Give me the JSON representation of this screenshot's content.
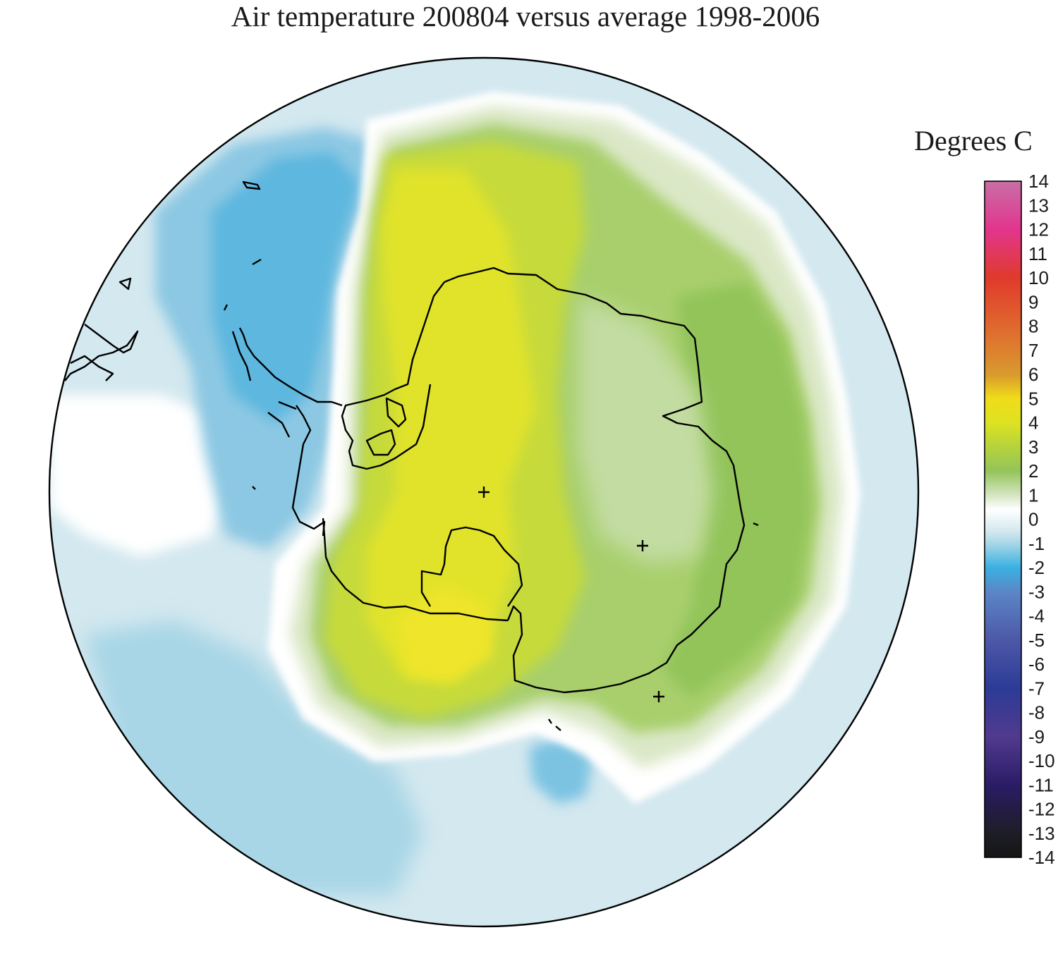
{
  "title": "Air temperature 200804 versus average 1998-2006",
  "colorbar": {
    "units_label": "Degrees C",
    "min": -14,
    "max": 14,
    "ticks": [
      "14",
      "13",
      "12",
      "11",
      "10",
      "9",
      "8",
      "7",
      "6",
      "5",
      "4",
      "3",
      "2",
      "1",
      "0",
      "-1",
      "-2",
      "-3",
      "-4",
      "-5",
      "-6",
      "-7",
      "-8",
      "-9",
      "-10",
      "-11",
      "-12",
      "-13",
      "-14"
    ],
    "colors": [
      {
        "v": 14,
        "c": "#c86fa6"
      },
      {
        "v": 12,
        "c": "#e2358d"
      },
      {
        "v": 10,
        "c": "#e03a2c"
      },
      {
        "v": 8,
        "c": "#e0672f"
      },
      {
        "v": 6,
        "c": "#d99a2e"
      },
      {
        "v": 5,
        "c": "#f0dc1a"
      },
      {
        "v": 4,
        "c": "#dde322"
      },
      {
        "v": 3,
        "c": "#b6d33c"
      },
      {
        "v": 2,
        "c": "#94c45a"
      },
      {
        "v": 1,
        "c": "#d5e5c1"
      },
      {
        "v": 0.4,
        "c": "#ffffff"
      },
      {
        "v": -0.5,
        "c": "#d3e8ef"
      },
      {
        "v": -1,
        "c": "#a8d6e6"
      },
      {
        "v": -2,
        "c": "#3ab1e2"
      },
      {
        "v": -3,
        "c": "#5b86c7"
      },
      {
        "v": -5,
        "c": "#4d58a8"
      },
      {
        "v": -7,
        "c": "#2c3b96"
      },
      {
        "v": -9,
        "c": "#513a8e"
      },
      {
        "v": -11,
        "c": "#2b1c66"
      },
      {
        "v": -13,
        "c": "#1d1d26"
      },
      {
        "v": -14,
        "c": "#161616"
      }
    ]
  },
  "map": {
    "projection": "south polar stereographic",
    "region": "Antarctica and surrounding Southern Ocean",
    "field_colors": {
      "background_ocean": "#d3e8ef",
      "cold_anomaly": "#a8d6e6",
      "strong_cold": "#5db7df",
      "warm_light": "#dbe8c8",
      "warm_green": "#9ac95e",
      "warm_yellowgreen": "#c2d83c",
      "warm_yellow": "#e3e22a",
      "coastline": "#000000"
    }
  }
}
